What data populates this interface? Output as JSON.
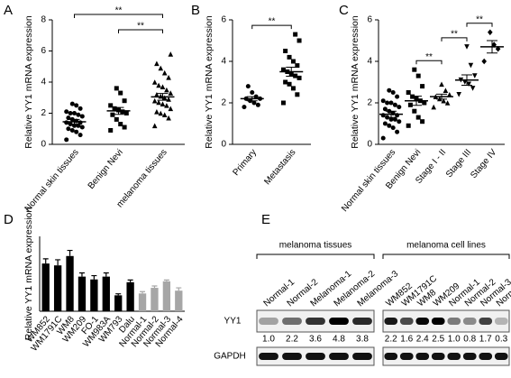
{
  "chart_data": [
    {
      "type": "dot",
      "label": "A",
      "ylabel": "Relative YY1 mRNA expression",
      "categories": [
        "Normal skin tissues",
        "Benign Nevi",
        "melanoma tissues"
      ],
      "markers": [
        "circle",
        "square",
        "triangle"
      ],
      "values": [
        [
          0.3,
          0.6,
          0.8,
          0.9,
          1.0,
          1.1,
          1.2,
          1.2,
          1.3,
          1.4,
          1.4,
          1.5,
          1.6,
          1.7,
          1.8,
          1.9,
          2.0,
          2.0,
          2.1,
          2.3,
          2.5,
          2.6
        ],
        [
          0.9,
          1.1,
          1.3,
          1.6,
          1.9,
          2.0,
          2.1,
          2.2,
          2.3,
          2.5,
          2.8,
          3.3,
          3.6
        ],
        [
          1.2,
          1.7,
          1.9,
          2.0,
          2.1,
          2.3,
          2.5,
          2.6,
          2.7,
          2.8,
          2.9,
          3.0,
          3.1,
          3.2,
          3.3,
          3.5,
          3.7,
          3.8,
          4.0,
          4.3,
          4.6,
          4.9,
          5.2,
          5.8
        ]
      ],
      "means": [
        1.45,
        2.15,
        3.05
      ],
      "sems": [
        0.15,
        0.22,
        0.22
      ],
      "ylim": [
        0,
        8
      ],
      "yticks": [
        0,
        2,
        4,
        6,
        8
      ],
      "brackets": [
        {
          "label": "**",
          "between": [
            "Normal skin tissues",
            "melanoma tissues"
          ]
        },
        {
          "label": "**",
          "between": [
            "Benign Nevi",
            "melanoma tissues"
          ]
        }
      ]
    },
    {
      "type": "dot",
      "label": "B",
      "ylabel": "Relative YY1 mRNA expression",
      "categories": [
        "Primary",
        "Metastasis"
      ],
      "markers": [
        "circle",
        "square"
      ],
      "values": [
        [
          1.8,
          1.9,
          2.0,
          2.1,
          2.2,
          2.2,
          2.3,
          2.5,
          2.8
        ],
        [
          2.0,
          2.4,
          2.7,
          2.9,
          3.0,
          3.2,
          3.3,
          3.4,
          3.5,
          3.6,
          3.8,
          4.0,
          4.2,
          4.5,
          5.0,
          5.3
        ]
      ],
      "means": [
        2.2,
        3.5
      ],
      "sems": [
        0.1,
        0.22
      ],
      "ylim": [
        0,
        6
      ],
      "yticks": [
        0,
        2,
        4,
        6
      ],
      "brackets": [
        {
          "label": "**",
          "between": [
            "Primary",
            "Metastasis"
          ]
        }
      ]
    },
    {
      "type": "dot",
      "label": "C",
      "ylabel": "Relative YY1 mRNA expression",
      "categories": [
        "Normal skin tissues",
        "Benign Nevi",
        "Stage I - II",
        "Stage III",
        "Stage IV"
      ],
      "markers": [
        "circle",
        "square",
        "triangle",
        "triangle-down",
        "diamond"
      ],
      "values": [
        [
          0.3,
          0.6,
          0.8,
          0.9,
          1.0,
          1.1,
          1.2,
          1.2,
          1.3,
          1.4,
          1.4,
          1.5,
          1.6,
          1.7,
          1.8,
          1.9,
          2.0,
          2.0,
          2.1,
          2.3,
          2.5,
          2.6
        ],
        [
          0.9,
          1.1,
          1.3,
          1.6,
          1.9,
          2.0,
          2.1,
          2.2,
          2.3,
          2.5,
          2.8,
          3.3,
          3.6
        ],
        [
          1.8,
          2.0,
          2.1,
          2.2,
          2.3,
          2.4,
          2.6,
          2.9
        ],
        [
          2.4,
          2.7,
          2.9,
          3.0,
          3.1,
          3.3,
          3.8,
          4.7
        ],
        [
          4.0,
          4.6,
          4.8,
          5.4
        ]
      ],
      "means": [
        1.45,
        2.1,
        2.3,
        3.1,
        4.7
      ],
      "sems": [
        0.15,
        0.22,
        0.12,
        0.25,
        0.3
      ],
      "ylim": [
        0,
        6
      ],
      "yticks": [
        0,
        2,
        4,
        6
      ],
      "brackets": [
        {
          "label": "**",
          "between": [
            "Benign Nevi",
            "Stage I - II"
          ]
        },
        {
          "label": "**",
          "between": [
            "Stage I - II",
            "Stage III"
          ]
        },
        {
          "label": "**",
          "between": [
            "Stage III",
            "Stage IV"
          ]
        }
      ]
    },
    {
      "type": "bar",
      "label": "D",
      "ylabel": "Relative YY1 mRNA expression",
      "categories": [
        "WM852",
        "WM1791C",
        "WM8",
        "WM209",
        "FO-1",
        "WM983A",
        "WM793",
        "Dalu",
        "Normal-1",
        "Normal-2",
        "Normal-3",
        "Normal-4"
      ],
      "values": [
        2.55,
        2.45,
        2.95,
        1.85,
        1.7,
        1.85,
        0.85,
        1.55,
        0.95,
        1.25,
        1.6,
        1.1
      ],
      "errors": [
        0.25,
        0.3,
        0.3,
        0.2,
        0.2,
        0.2,
        0.08,
        0.12,
        0.1,
        0.1,
        0.07,
        0.15
      ],
      "colors": [
        "#000000",
        "#000000",
        "#000000",
        "#000000",
        "#000000",
        "#000000",
        "#000000",
        "#000000",
        "#a6a6a6",
        "#a6a6a6",
        "#a6a6a6",
        "#a6a6a6"
      ],
      "ylim": [
        0,
        4
      ]
    },
    {
      "type": "blot",
      "label": "E",
      "rows": [
        "YY1",
        "GAPDH"
      ],
      "groups": [
        {
          "name": "melanoma tissues",
          "lanes": [
            "Normal-1",
            "Normal-2",
            "Melanoma-1",
            "Melanoma-2",
            "Melanoma-3"
          ],
          "values": [
            1,
            2.2,
            3.6,
            4.8,
            3.8
          ],
          "value_labels": [
            "1.0",
            "2.2",
            "3.6",
            "4.8",
            "3.8"
          ]
        },
        {
          "name": "melanoma cell lines",
          "lanes": [
            "WM852",
            "WM1791C",
            "WM8",
            "WM209",
            "Normal-1",
            "Normal-2",
            "Normal-3",
            "Normal-4"
          ],
          "values": [
            2.2,
            1.6,
            2.4,
            2.5,
            1,
            0.8,
            1.7,
            0.3
          ],
          "value_labels": [
            "2.2",
            "1.6",
            "2.4",
            "2.5",
            "1.0",
            "0.8",
            "1.7",
            "0.3"
          ]
        }
      ]
    }
  ]
}
